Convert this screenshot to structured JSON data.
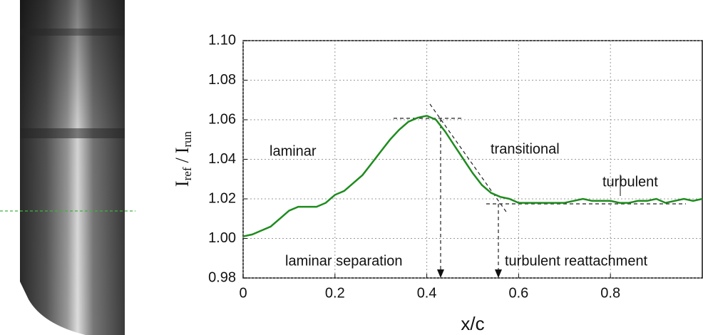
{
  "chart_data": {
    "type": "line",
    "xlabel": "x/c",
    "ylabel": [
      "I",
      "ref",
      "/",
      "I",
      "run"
    ],
    "x": [
      0,
      0.02,
      0.04,
      0.06,
      0.08,
      0.1,
      0.12,
      0.14,
      0.16,
      0.18,
      0.2,
      0.22,
      0.24,
      0.26,
      0.28,
      0.3,
      0.32,
      0.34,
      0.36,
      0.38,
      0.4,
      0.42,
      0.44,
      0.46,
      0.48,
      0.5,
      0.52,
      0.54,
      0.56,
      0.58,
      0.6,
      0.62,
      0.64,
      0.66,
      0.68,
      0.7,
      0.72,
      0.74,
      0.76,
      0.78,
      0.8,
      0.82,
      0.84,
      0.86,
      0.88,
      0.9,
      0.92,
      0.94,
      0.96,
      0.98,
      1.0
    ],
    "series": [
      {
        "color": "#1e8c1e",
        "values": [
          1.001,
          1.002,
          1.004,
          1.006,
          1.01,
          1.014,
          1.016,
          1.016,
          1.016,
          1.018,
          1.022,
          1.024,
          1.028,
          1.032,
          1.038,
          1.044,
          1.05,
          1.055,
          1.059,
          1.061,
          1.062,
          1.06,
          1.054,
          1.047,
          1.04,
          1.033,
          1.027,
          1.023,
          1.021,
          1.02,
          1.018,
          1.018,
          1.018,
          1.018,
          1.018,
          1.018,
          1.019,
          1.02,
          1.019,
          1.019,
          1.019,
          1.018,
          1.018,
          1.019,
          1.019,
          1.02,
          1.018,
          1.019,
          1.02,
          1.019,
          1.02
        ]
      }
    ],
    "xlim": [
      0,
      1
    ],
    "xticks": [
      0,
      0.2,
      0.4,
      0.6,
      0.8
    ],
    "ylim": [
      0.98,
      1.1
    ],
    "yticks": [
      {
        "value": 0.98,
        "label": "0.98"
      },
      {
        "value": 1,
        "label": "1.00"
      },
      {
        "value": 1.02,
        "label": "1.02"
      },
      {
        "value": 1.04,
        "label": "1.04"
      },
      {
        "value": 1.06,
        "label": "1.06"
      },
      {
        "value": 1.08,
        "label": "1.08"
      },
      {
        "value": 1.1,
        "label": "1.10"
      }
    ],
    "grid": true,
    "annotations": [
      "laminar",
      "transitional",
      "turbulent",
      "laminar separation",
      "turbulent reattachment"
    ]
  }
}
